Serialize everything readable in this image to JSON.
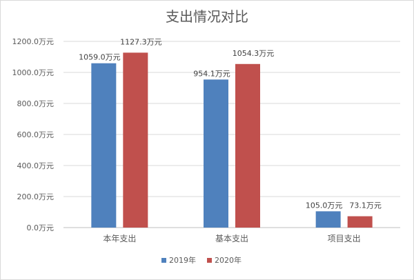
{
  "chart_data": {
    "type": "bar",
    "title": "支出情况对比",
    "categories": [
      "本年支出",
      "基本支出",
      "项目支出"
    ],
    "series": [
      {
        "name": "2019年",
        "color": "#4f81bd",
        "values": [
          1059.0,
          954.1,
          105.0
        ]
      },
      {
        "name": "2020年",
        "color": "#c0504d",
        "values": [
          1127.3,
          1054.3,
          73.1
        ]
      }
    ],
    "value_labels": [
      [
        "1059.0万元",
        "954.1万元",
        "105.0万元"
      ],
      [
        "1127.3万元",
        "1054.3万元",
        "73.1万元"
      ]
    ],
    "yticks": [
      0,
      200,
      400,
      600,
      800,
      1000,
      1200
    ],
    "ytick_labels": [
      "0.0万元",
      "200.0万元",
      "400.0万元",
      "600.0万元",
      "800.0万元",
      "1000.0万元",
      "1200.0万元"
    ],
    "ylim": [
      0,
      1200
    ],
    "grid": true,
    "legend_position": "bottom"
  }
}
